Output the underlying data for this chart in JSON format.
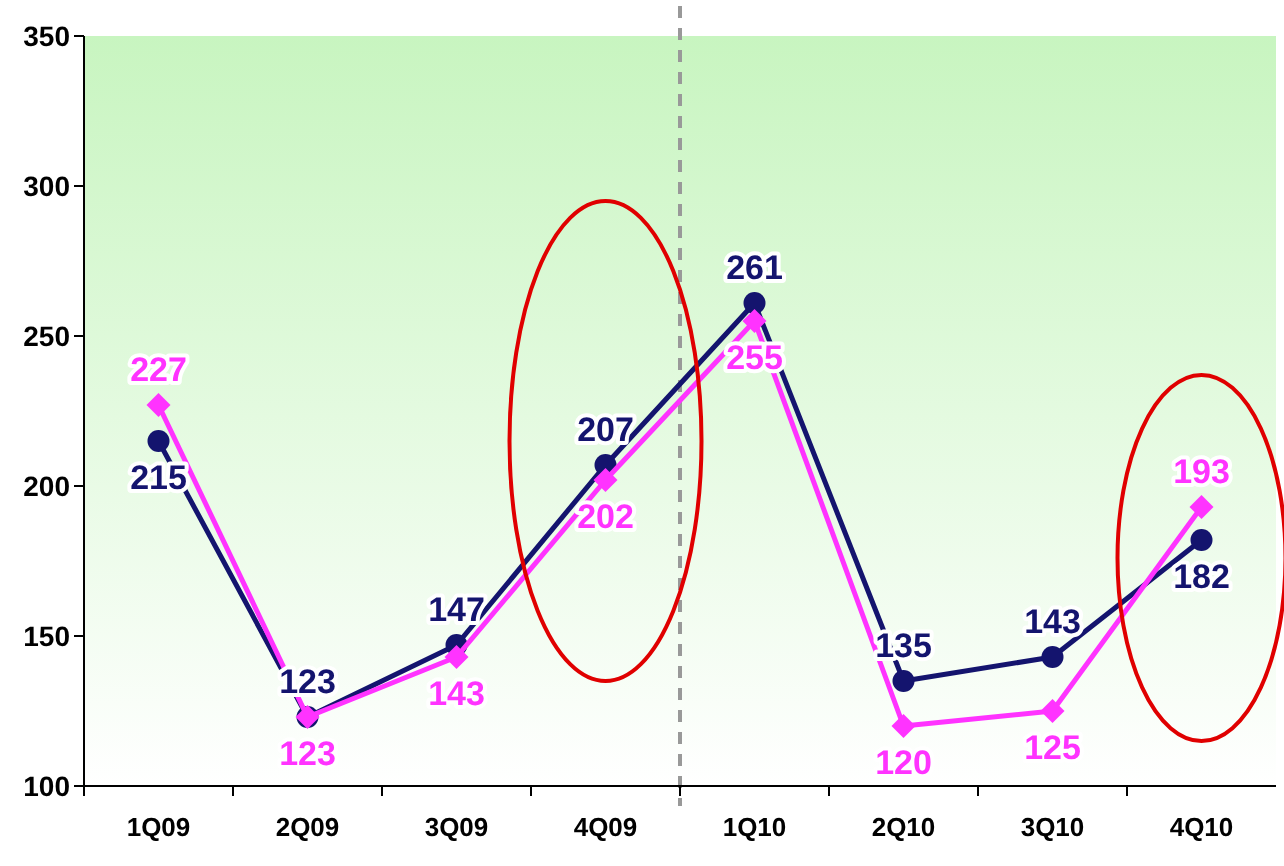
{
  "chart_data": {
    "type": "line",
    "categories": [
      "1Q09",
      "2Q09",
      "3Q09",
      "4Q09",
      "1Q10",
      "2Q10",
      "3Q10",
      "4Q10"
    ],
    "series": [
      {
        "color": "#14146e",
        "values": [
          215,
          123,
          147,
          207,
          261,
          135,
          143,
          182
        ],
        "marker": "circle"
      },
      {
        "color": "#ff33ff",
        "values": [
          227,
          123,
          143,
          202,
          255,
          120,
          125,
          193
        ],
        "marker": "diamond"
      }
    ],
    "ylim": [
      100,
      350
    ],
    "yticks": [
      100,
      150,
      200,
      250,
      300,
      350
    ],
    "grid": false,
    "data_labels": true,
    "line_style": "solid"
  }
}
